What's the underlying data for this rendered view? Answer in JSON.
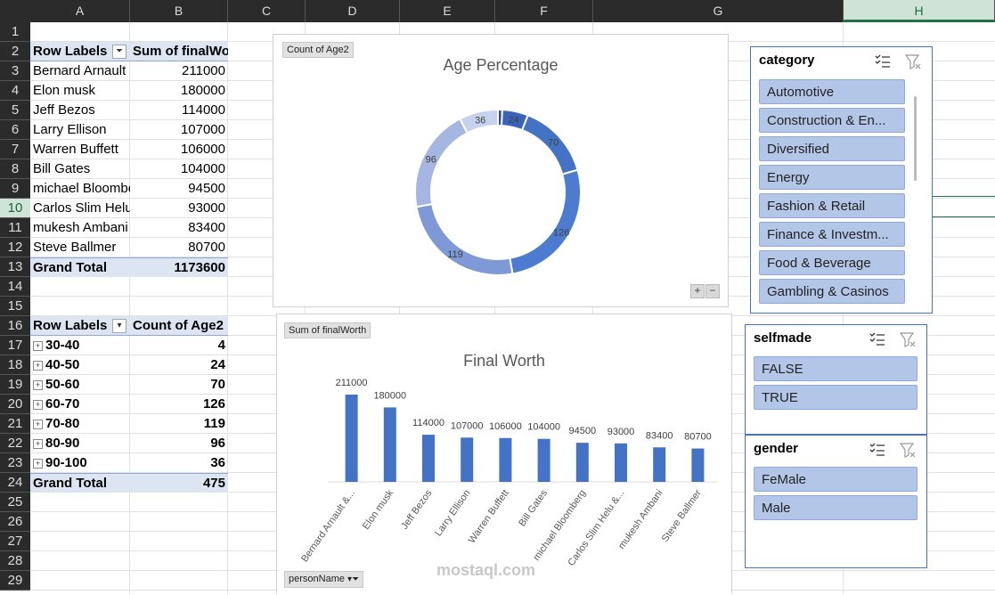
{
  "columns": [
    "A",
    "B",
    "C",
    "D",
    "E",
    "F",
    "G",
    "H"
  ],
  "rows": [
    "1",
    "2",
    "3",
    "4",
    "5",
    "6",
    "7",
    "8",
    "9",
    "10",
    "11",
    "12",
    "13",
    "14",
    "15",
    "16",
    "17",
    "18",
    "19",
    "20",
    "21",
    "22",
    "23",
    "24",
    "25",
    "26",
    "27",
    "28",
    "29"
  ],
  "pivot1": {
    "header_labels": "Row Labels",
    "header_value": "Sum of finalWorth",
    "rows": [
      {
        "label": "Bernard Arnault",
        "value": "211000"
      },
      {
        "label": "Elon musk",
        "value": "180000"
      },
      {
        "label": "Jeff Bezos",
        "value": "114000"
      },
      {
        "label": "Larry Ellison",
        "value": "107000"
      },
      {
        "label": "Warren Buffett",
        "value": "106000"
      },
      {
        "label": "Bill Gates",
        "value": "104000"
      },
      {
        "label": "michael Bloomberg",
        "value": "94500"
      },
      {
        "label": "Carlos Slim Helu",
        "value": "93000"
      },
      {
        "label": "mukesh Ambani",
        "value": "83400"
      },
      {
        "label": "Steve Ballmer",
        "value": "80700"
      }
    ],
    "total_label": "Grand Total",
    "total_value": "1173600"
  },
  "pivot2": {
    "header_labels": "Row Labels",
    "header_value": "Count of Age2",
    "rows": [
      {
        "label": "30-40",
        "value": "4"
      },
      {
        "label": "40-50",
        "value": "24"
      },
      {
        "label": "50-60",
        "value": "70"
      },
      {
        "label": "60-70",
        "value": "126"
      },
      {
        "label": "70-80",
        "value": "119"
      },
      {
        "label": "80-90",
        "value": "96"
      },
      {
        "label": "90-100",
        "value": "36"
      }
    ],
    "total_label": "Grand Total",
    "total_value": "475"
  },
  "donut_chart": {
    "field_button": "Count of Age2",
    "chart_data": {
      "type": "pie",
      "title": "Age Percentage",
      "categories": [
        "30-40",
        "40-50",
        "50-60",
        "60-70",
        "70-80",
        "80-90",
        "90-100"
      ],
      "values": [
        4,
        24,
        70,
        126,
        119,
        96,
        36
      ],
      "labels": [
        "4",
        "24",
        "70",
        "126",
        "119",
        "96",
        "36"
      ],
      "colors": [
        "#2f4f8f",
        "#3a63b8",
        "#4472c4",
        "#4d7bd0",
        "#7f99d6",
        "#a5b6e0",
        "#c7d3ee"
      ]
    }
  },
  "bar_chart": {
    "field_button": "Sum of finalWorth",
    "axis_button": "personName",
    "chart_data": {
      "type": "bar",
      "title": "Final Worth",
      "categories": [
        "Bernard Arnault &...",
        "Elon musk",
        "Jeff Bezos",
        "Larry Ellison",
        "Warren Buffett",
        "Bill Gates",
        "michael Bloomberg",
        "Carlos Slim Helu &...",
        "mukesh Ambani",
        "Steve Ballmer"
      ],
      "values": [
        211000,
        180000,
        114000,
        107000,
        106000,
        104000,
        94500,
        93000,
        83400,
        80700
      ],
      "labels": [
        "211000",
        "180000",
        "114000",
        "107000",
        "106000",
        "104000",
        "94500",
        "93000",
        "83400",
        "80700"
      ],
      "color": "#4472c4"
    }
  },
  "slicers": {
    "category": {
      "title": "category",
      "items": [
        "Automotive",
        "Construction & En...",
        "Diversified",
        "Energy",
        "Fashion & Retail",
        "Finance & Investm...",
        "Food & Beverage",
        "Gambling & Casinos"
      ]
    },
    "selfmade": {
      "title": "selfmade",
      "items": [
        "FALSE",
        "TRUE"
      ]
    },
    "gender": {
      "title": "gender",
      "items": [
        "FeMale",
        "Male"
      ]
    }
  },
  "watermark": "mostaql.com"
}
